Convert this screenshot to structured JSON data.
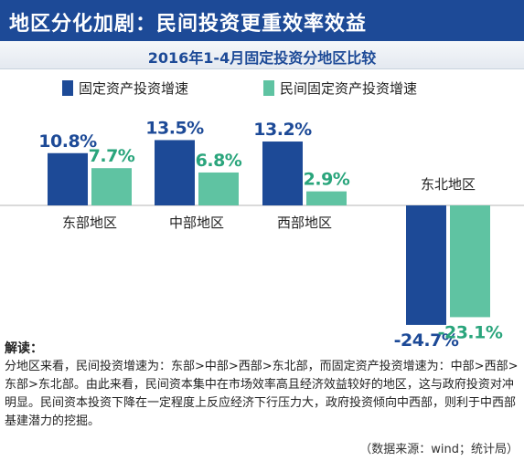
{
  "header": {
    "title": "地区分化加剧：民间投资更重效率效益"
  },
  "colors": {
    "header_bg": "#1d4a97",
    "series1": "#1d4a97",
    "series2": "#5fc3a2",
    "value_label_series1": "#1d4a97",
    "value_label_series2": "#2aa57c"
  },
  "chart_data": {
    "type": "bar",
    "title": "2016年1-4月固定投资分地区比较",
    "categories": [
      "东部地区",
      "中部地区",
      "西部地区",
      "东北地区"
    ],
    "series": [
      {
        "name": "固定资产投资增速",
        "values": [
          10.8,
          13.5,
          13.2,
          -24.7
        ],
        "labels": [
          "10.8%",
          "13.5%",
          "13.2%",
          "-24.7%"
        ]
      },
      {
        "name": "民间固定资产投资增速",
        "values": [
          7.7,
          6.8,
          2.9,
          -23.1
        ],
        "labels": [
          "7.7%",
          "6.8%",
          "2.9%",
          "-23.1%"
        ]
      }
    ],
    "ylim": [
      -27,
      14
    ],
    "grid": false,
    "legend_position": "top"
  },
  "caption": {
    "heading": "解读：",
    "body": "分地区来看，民间投资增速为：东部>中部>西部>东北部，而固定资产投资增速为：中部>西部>东部>东北部。由此来看，民间资本集中在市场效率高且经济效益较好的地区，这与政府投资对冲明显。民间资本投资下降在一定程度上反应经济下行压力大，政府投资倾向中西部，则利于中西部基建潜力的挖掘。"
  },
  "source": "（数据来源：wind；统计局）"
}
